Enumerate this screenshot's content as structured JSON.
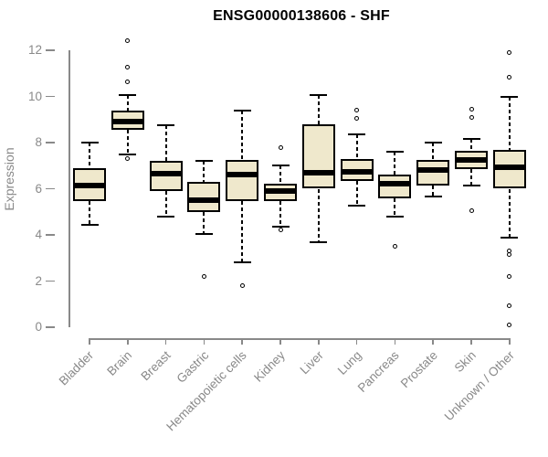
{
  "chart_data": {
    "type": "boxplot",
    "title": "ENSG00000138606 - SHF",
    "ylabel": "Expression",
    "xlabel": "",
    "ylim": [
      0,
      12
    ],
    "yticks": [
      0,
      2,
      4,
      6,
      8,
      10,
      12
    ],
    "grid": false,
    "legend": null,
    "categories": [
      "Bladder",
      "Brain",
      "Breast",
      "Gastric",
      "Hematopoietic cells",
      "Kidney",
      "Liver",
      "Lung",
      "Pancreas",
      "Prostate",
      "Skin",
      "Unknown / Other"
    ],
    "boxes": [
      {
        "category": "Bladder",
        "whisker_low": 4.45,
        "q1": 5.45,
        "median": 6.15,
        "q3": 6.9,
        "whisker_high": 8.0,
        "outliers": []
      },
      {
        "category": "Brain",
        "whisker_low": 7.5,
        "q1": 8.55,
        "median": 8.9,
        "q3": 9.4,
        "whisker_high": 10.05,
        "outliers": [
          12.4,
          11.25,
          10.65,
          7.3
        ]
      },
      {
        "category": "Breast",
        "whisker_low": 4.8,
        "q1": 5.9,
        "median": 6.65,
        "q3": 7.2,
        "whisker_high": 8.75,
        "outliers": []
      },
      {
        "category": "Gastric",
        "whisker_low": 4.05,
        "q1": 5.0,
        "median": 5.5,
        "q3": 6.3,
        "whisker_high": 7.2,
        "outliers": [
          2.2
        ]
      },
      {
        "category": "Hematopoietic cells",
        "whisker_low": 2.8,
        "q1": 5.45,
        "median": 6.6,
        "q3": 7.25,
        "whisker_high": 9.4,
        "outliers": [
          1.8
        ]
      },
      {
        "category": "Kidney",
        "whisker_low": 4.35,
        "q1": 5.45,
        "median": 5.9,
        "q3": 6.2,
        "whisker_high": 7.0,
        "outliers": [
          7.8,
          4.2
        ]
      },
      {
        "category": "Liver",
        "whisker_low": 3.7,
        "q1": 6.0,
        "median": 6.7,
        "q3": 8.8,
        "whisker_high": 10.05,
        "outliers": []
      },
      {
        "category": "Lung",
        "whisker_low": 5.25,
        "q1": 6.35,
        "median": 6.75,
        "q3": 7.3,
        "whisker_high": 8.35,
        "outliers": [
          9.4,
          9.05
        ]
      },
      {
        "category": "Pancreas",
        "whisker_low": 4.8,
        "q1": 5.6,
        "median": 6.2,
        "q3": 6.6,
        "whisker_high": 7.6,
        "outliers": [
          3.5
        ]
      },
      {
        "category": "Prostate",
        "whisker_low": 5.65,
        "q1": 6.15,
        "median": 6.8,
        "q3": 7.25,
        "whisker_high": 8.0,
        "outliers": []
      },
      {
        "category": "Skin",
        "whisker_low": 6.15,
        "q1": 6.85,
        "median": 7.25,
        "q3": 7.65,
        "whisker_high": 8.15,
        "outliers": [
          9.45,
          9.1,
          5.05
        ]
      },
      {
        "category": "Unknown / Other",
        "whisker_low": 3.9,
        "q1": 6.0,
        "median": 6.95,
        "q3": 7.7,
        "whisker_high": 10.0,
        "outliers": [
          11.9,
          10.85,
          3.3,
          3.15,
          2.2,
          0.95,
          0.1
        ]
      }
    ],
    "colors": {
      "box_fill": "#EFE8CC",
      "box_border": "#000000",
      "median": "#000000",
      "whisker": "#000000",
      "outlier_ring": "#000000",
      "axis": "#898989",
      "tick_label": "#898989",
      "title": "#000000",
      "background": "#ffffff"
    }
  }
}
